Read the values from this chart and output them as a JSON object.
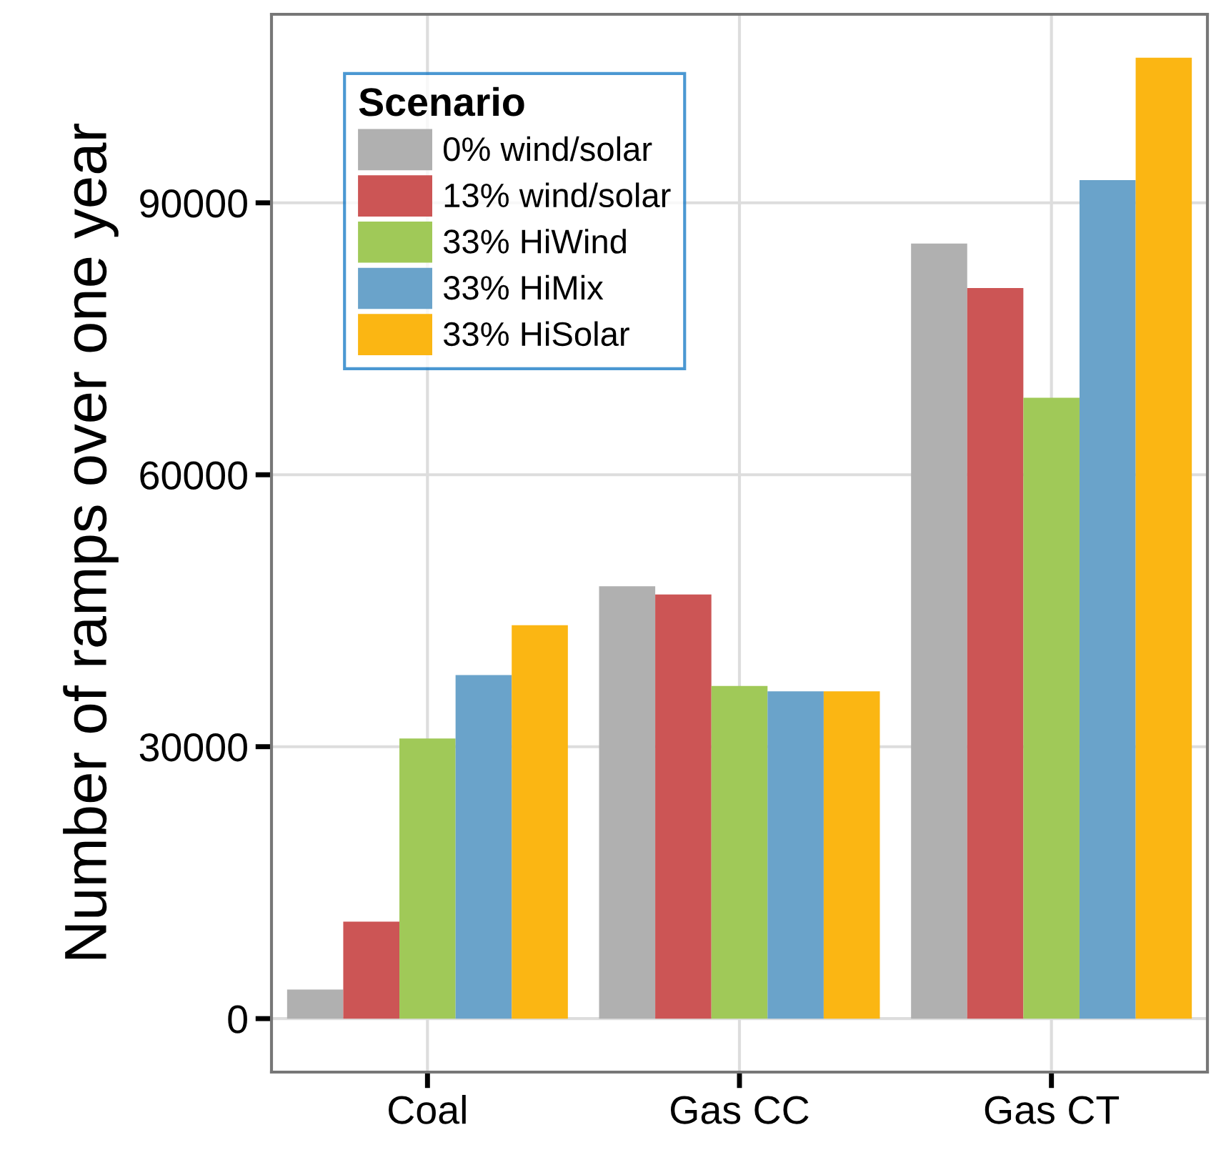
{
  "chart_data": {
    "type": "bar",
    "ylabel": "Number of ramps over one year",
    "legend_title": "Scenario",
    "categories": [
      "Coal",
      "Gas CC",
      "Gas CT"
    ],
    "series": [
      {
        "name": "0% wind/solar",
        "color": "#b0b0b0",
        "values": [
          3200,
          47700,
          85500
        ]
      },
      {
        "name": "13% wind/solar",
        "color": "#cc5555",
        "values": [
          10700,
          46800,
          80600
        ]
      },
      {
        "name": "33% HiWind",
        "color": "#a0c958",
        "values": [
          30900,
          36700,
          68500
        ]
      },
      {
        "name": "33% HiMix",
        "color": "#6aa3ca",
        "values": [
          37900,
          36100,
          92500
        ]
      },
      {
        "name": "33% HiSolar",
        "color": "#fbb613",
        "values": [
          43400,
          36100,
          106000
        ]
      }
    ],
    "ylim": [
      -5900,
      110800
    ],
    "yticks": [
      0,
      30000,
      60000,
      90000
    ],
    "grid": true,
    "legend": "top left"
  }
}
